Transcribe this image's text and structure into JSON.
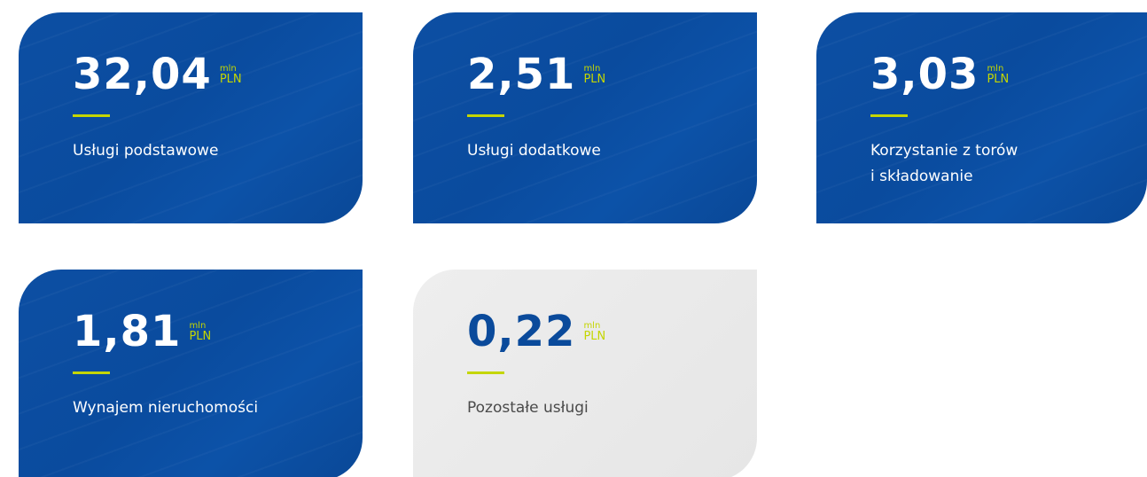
{
  "cards": [
    {
      "value": "32,04",
      "unit_top": "mln",
      "unit_bottom": "PLN",
      "label_lines": [
        "Usługi podstawowe"
      ],
      "style": "blue"
    },
    {
      "value": "2,51",
      "unit_top": "mln",
      "unit_bottom": "PLN",
      "label_lines": [
        "Usługi dodatkowe"
      ],
      "style": "blue"
    },
    {
      "value": "3,03",
      "unit_top": "mln",
      "unit_bottom": "PLN",
      "label_lines": [
        "Korzystanie z torów",
        "i składowanie"
      ],
      "style": "blue"
    },
    {
      "value": "1,81",
      "unit_top": "mln",
      "unit_bottom": "PLN",
      "label_lines": [
        "Wynajem nieruchomości"
      ],
      "style": "blue"
    },
    {
      "value": "0,22",
      "unit_top": "mln",
      "unit_bottom": "PLN",
      "label_lines": [
        "Pozostałe usługi"
      ],
      "style": "grey"
    }
  ]
}
